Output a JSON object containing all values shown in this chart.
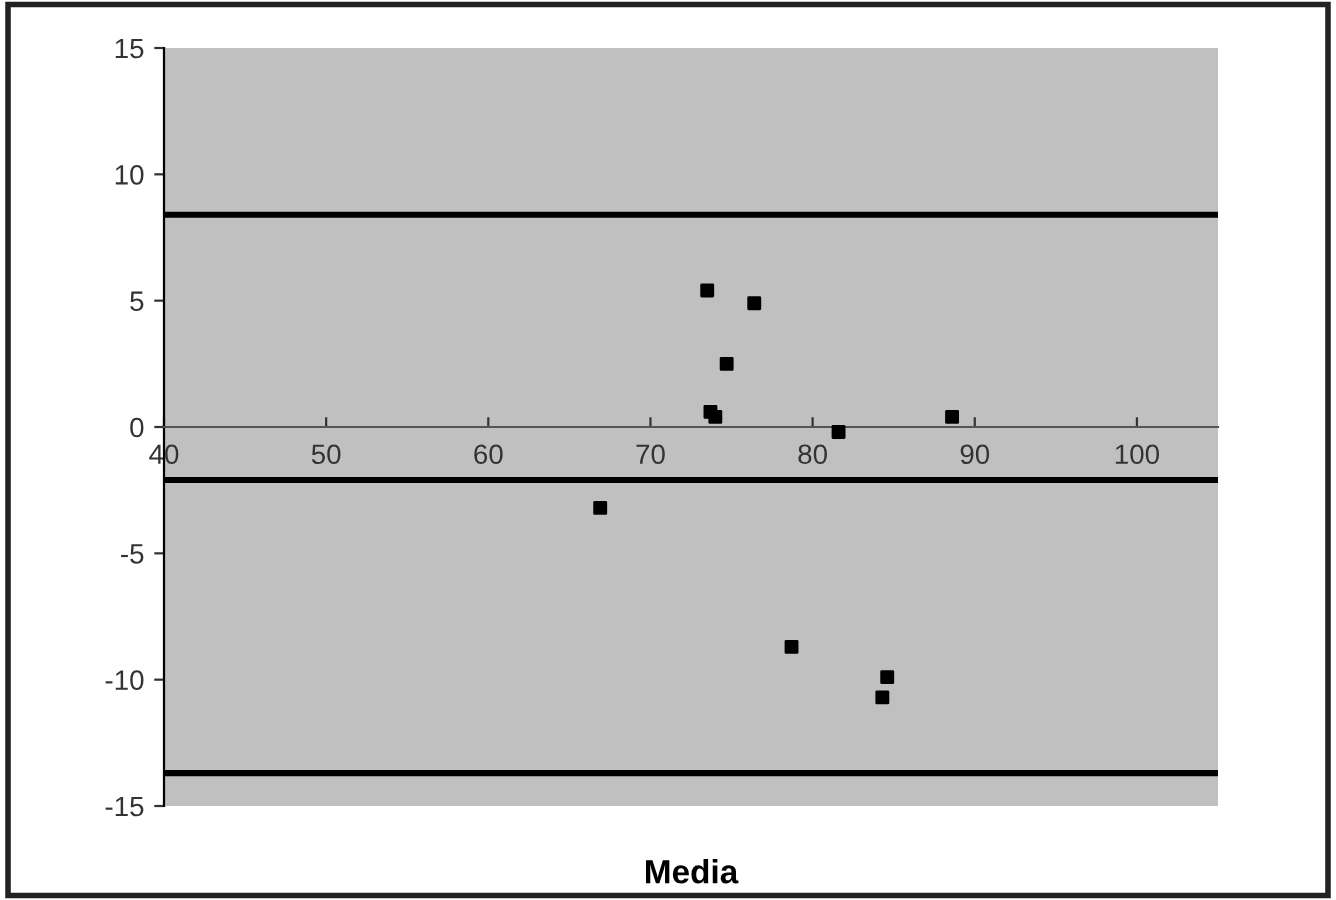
{
  "chart_data": {
    "type": "scatter",
    "xlabel": "Media",
    "x": [
      73.5,
      76.4,
      74.7,
      73.7,
      74.0,
      81.6,
      88.6,
      66.9,
      78.7,
      84.6,
      84.3
    ],
    "series": [
      {
        "color": "#000000",
        "values": [
          5.4,
          4.9,
          2.5,
          0.6,
          0.4,
          -0.2,
          0.4,
          -3.2,
          -8.7,
          -9.9,
          -10.7
        ]
      }
    ],
    "xlim": [
      40,
      105
    ],
    "xticks": [
      40,
      50,
      60,
      70,
      80,
      90,
      100
    ],
    "ylim": [
      -15,
      15
    ],
    "yticks": [
      -15,
      -10,
      -5,
      0,
      5,
      10,
      15
    ],
    "ref_lines": [
      {
        "axis": "y",
        "value": 8.4,
        "color": "#000000"
      },
      {
        "axis": "y",
        "value": -2.1,
        "color": "#000000"
      },
      {
        "axis": "y",
        "value": -13.7,
        "color": "#000000"
      }
    ],
    "marker": "square",
    "grid": false,
    "legend": false
  }
}
